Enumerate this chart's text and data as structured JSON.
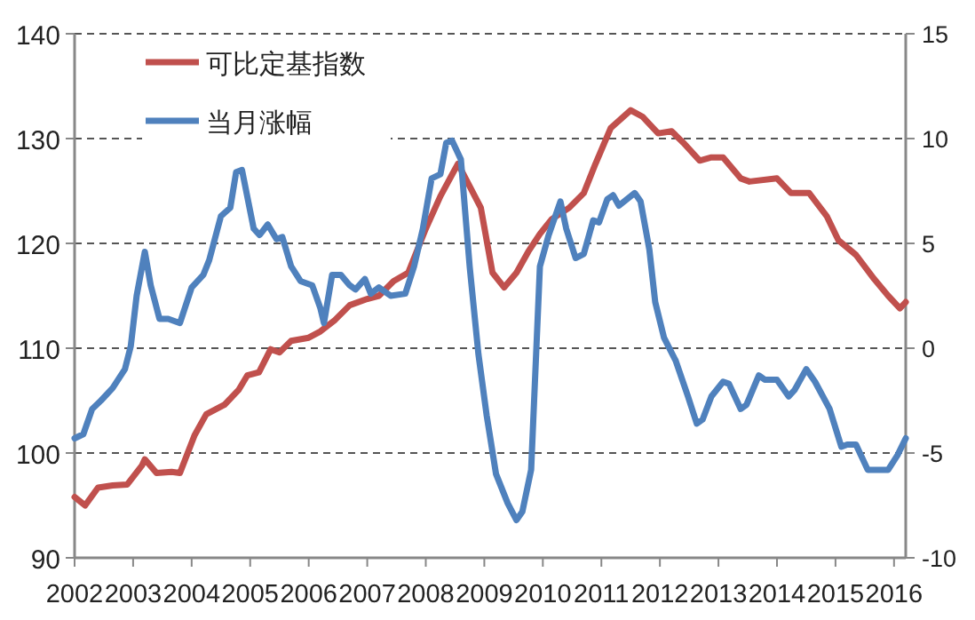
{
  "chart_data": {
    "type": "line",
    "xlim": [
      2002,
      2016.2
    ],
    "xticks": [
      2002,
      2003,
      2004,
      2005,
      2006,
      2007,
      2008,
      2009,
      2010,
      2011,
      2012,
      2013,
      2014,
      2015,
      2016
    ],
    "ylim": [
      90,
      140
    ],
    "yticks": [
      90,
      100,
      110,
      120,
      130,
      140
    ],
    "y2lim": [
      -10,
      15
    ],
    "y2ticks": [
      -10,
      -5,
      0,
      5,
      10,
      15
    ],
    "grid": "y",
    "legend": "top left",
    "line_style": "solid",
    "marker": "none",
    "series": [
      {
        "name": "可比定基指数",
        "color": "#c0504d",
        "x": [
          2002.0,
          2002.18,
          2002.4,
          2002.65,
          2002.9,
          2003.15,
          2003.2,
          2003.4,
          2003.66,
          2003.8,
          2004.05,
          2004.25,
          2004.56,
          2004.8,
          2004.95,
          2005.15,
          2005.35,
          2005.5,
          2005.7,
          2006.0,
          2006.2,
          2006.45,
          2006.7,
          2007.0,
          2007.2,
          2007.45,
          2007.7,
          2008.0,
          2008.25,
          2008.55,
          2008.94,
          2009.14,
          2009.34,
          2009.55,
          2009.75,
          2009.95,
          2010.15,
          2010.45,
          2010.7,
          2010.9,
          2011.16,
          2011.5,
          2011.7,
          2011.97,
          2012.2,
          2012.4,
          2012.68,
          2012.88,
          2013.08,
          2013.38,
          2013.53,
          2014.0,
          2014.24,
          2014.55,
          2014.85,
          2015.05,
          2015.35,
          2015.66,
          2015.9,
          2016.1,
          2016.2
        ],
        "values": [
          95.8,
          95.0,
          96.7,
          96.9,
          97.0,
          98.8,
          99.4,
          98.1,
          98.2,
          98.1,
          101.7,
          103.7,
          104.6,
          106.0,
          107.4,
          107.7,
          109.9,
          109.6,
          110.7,
          111.0,
          111.6,
          112.7,
          114.1,
          114.7,
          115.0,
          116.4,
          117.2,
          121.4,
          124.5,
          127.6,
          123.4,
          117.2,
          115.8,
          117.2,
          119.2,
          120.9,
          122.3,
          123.4,
          124.8,
          127.6,
          131.0,
          132.7,
          132.1,
          130.5,
          130.7,
          129.6,
          127.9,
          128.2,
          128.2,
          126.2,
          125.9,
          126.2,
          124.8,
          124.8,
          122.6,
          120.3,
          118.9,
          116.6,
          115.0,
          113.8,
          114.4
        ]
      },
      {
        "name": "当月涨幅",
        "color": "#4f81bd",
        "axis": "y2",
        "x": [
          2002.0,
          2002.15,
          2002.3,
          2002.45,
          2002.65,
          2002.86,
          2002.96,
          2003.06,
          2003.2,
          2003.3,
          2003.45,
          2003.6,
          2003.8,
          2004.0,
          2004.2,
          2004.3,
          2004.5,
          2004.66,
          2004.76,
          2004.86,
          2005.06,
          2005.16,
          2005.3,
          2005.45,
          2005.55,
          2005.7,
          2005.86,
          2006.06,
          2006.2,
          2006.26,
          2006.4,
          2006.55,
          2006.7,
          2006.8,
          2006.96,
          2007.06,
          2007.2,
          2007.4,
          2007.65,
          2007.8,
          2007.95,
          2008.1,
          2008.25,
          2008.35,
          2008.45,
          2008.6,
          2008.75,
          2008.9,
          2009.04,
          2009.2,
          2009.4,
          2009.55,
          2009.65,
          2009.8,
          2009.95,
          2010.1,
          2010.3,
          2010.4,
          2010.56,
          2010.7,
          2010.86,
          2010.96,
          2011.1,
          2011.2,
          2011.3,
          2011.57,
          2011.67,
          2011.82,
          2011.92,
          2012.07,
          2012.27,
          2012.48,
          2012.63,
          2012.73,
          2012.88,
          2013.08,
          2013.18,
          2013.38,
          2013.48,
          2013.69,
          2013.79,
          2014.0,
          2014.2,
          2014.3,
          2014.5,
          2014.65,
          2014.9,
          2015.1,
          2015.2,
          2015.35,
          2015.55,
          2015.9,
          2016.06,
          2016.2
        ],
        "values": [
          -4.3,
          -4.1,
          -2.9,
          -2.5,
          -1.9,
          -1.0,
          0.1,
          2.5,
          4.6,
          3.0,
          1.4,
          1.4,
          1.2,
          2.9,
          3.5,
          4.2,
          6.3,
          6.7,
          8.4,
          8.5,
          5.7,
          5.4,
          5.9,
          5.2,
          5.3,
          3.9,
          3.2,
          3.0,
          1.9,
          1.2,
          3.5,
          3.5,
          3.0,
          2.8,
          3.3,
          2.6,
          2.9,
          2.5,
          2.6,
          3.9,
          5.7,
          8.1,
          8.3,
          9.8,
          9.9,
          9.0,
          3.9,
          -0.3,
          -3.2,
          -6.0,
          -7.4,
          -8.2,
          -7.8,
          -5.8,
          3.9,
          5.4,
          7.0,
          5.7,
          4.3,
          4.5,
          6.1,
          6.0,
          7.1,
          7.3,
          6.8,
          7.4,
          7.0,
          4.7,
          2.2,
          0.5,
          -0.6,
          -2.3,
          -3.6,
          -3.4,
          -2.3,
          -1.6,
          -1.7,
          -2.9,
          -2.7,
          -1.3,
          -1.5,
          -1.5,
          -2.3,
          -2.0,
          -1.0,
          -1.6,
          -2.9,
          -4.7,
          -4.6,
          -4.6,
          -5.8,
          -5.8,
          -5.1,
          -4.3
        ]
      }
    ]
  }
}
